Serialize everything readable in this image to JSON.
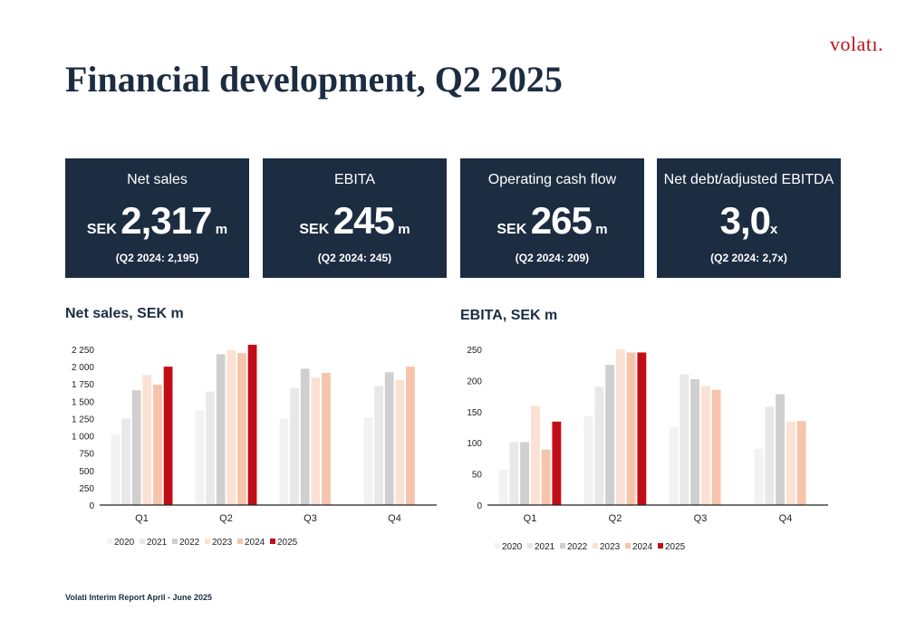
{
  "brand": {
    "logo": "volatı."
  },
  "title": "Financial development, Q2 2025",
  "kpis": [
    {
      "label": "Net sales",
      "prefix": "SEK",
      "value": "2,317",
      "unit": "m",
      "compare": "(Q2 2024: 2,195)"
    },
    {
      "label": "EBITA",
      "prefix": "SEK",
      "value": "245",
      "unit": "m",
      "compare": "(Q2 2024: 245)"
    },
    {
      "label": "Operating cash flow",
      "prefix": "SEK",
      "value": "265",
      "unit": "m",
      "compare": "(Q2 2024: 209)"
    },
    {
      "label": "Net debt/adjusted EBITDA",
      "prefix": "",
      "value": "3,0",
      "unit": "x",
      "compare": "(Q2 2024: 2,7x)"
    }
  ],
  "colors": {
    "2020": "#f2f2f2",
    "2021": "#e8e8e8",
    "2022": "#cfcfcf",
    "2023": "#fbe1d3",
    "2024": "#f6c4aa",
    "2025": "#c00d17"
  },
  "footer": "Volati Interim Report April - June 2025",
  "chart_data": [
    {
      "type": "bar",
      "title": "Net sales, SEK m",
      "categories": [
        "Q1",
        "Q2",
        "Q3",
        "Q4"
      ],
      "ylim": [
        0,
        2250
      ],
      "yticks": [
        0,
        250,
        500,
        750,
        1000,
        1250,
        1500,
        1750,
        2000,
        2250
      ],
      "ytick_labels": [
        "0",
        "250",
        "500",
        "750",
        "1 000",
        "1 250",
        "1 500",
        "1 750",
        "2 000",
        "2 250"
      ],
      "legend_position": "bottom",
      "series": [
        {
          "name": "2020",
          "values": [
            1020,
            1370,
            1250,
            1270
          ]
        },
        {
          "name": "2021",
          "values": [
            1250,
            1640,
            1690,
            1720
          ]
        },
        {
          "name": "2022",
          "values": [
            1660,
            2180,
            1970,
            1920
          ]
        },
        {
          "name": "2023",
          "values": [
            1880,
            2240,
            1840,
            1810
          ]
        },
        {
          "name": "2024",
          "values": [
            1740,
            2195,
            1910,
            2000
          ]
        },
        {
          "name": "2025",
          "values": [
            2000,
            2317,
            null,
            null
          ]
        }
      ]
    },
    {
      "type": "bar",
      "title": "EBITA, SEK m",
      "categories": [
        "Q1",
        "Q2",
        "Q3",
        "Q4"
      ],
      "ylim": [
        0,
        250
      ],
      "yticks": [
        0,
        50,
        100,
        150,
        200,
        250
      ],
      "ytick_labels": [
        "0",
        "50",
        "100",
        "150",
        "200",
        "250"
      ],
      "legend_position": "bottom",
      "series": [
        {
          "name": "2020",
          "values": [
            57,
            143,
            125,
            90
          ]
        },
        {
          "name": "2021",
          "values": [
            101,
            190,
            210,
            158
          ]
        },
        {
          "name": "2022",
          "values": [
            101,
            225,
            202,
            178
          ]
        },
        {
          "name": "2023",
          "values": [
            159,
            250,
            191,
            134
          ]
        },
        {
          "name": "2024",
          "values": [
            89,
            245,
            185,
            135
          ]
        },
        {
          "name": "2025",
          "values": [
            134,
            245,
            null,
            null
          ]
        }
      ]
    }
  ]
}
